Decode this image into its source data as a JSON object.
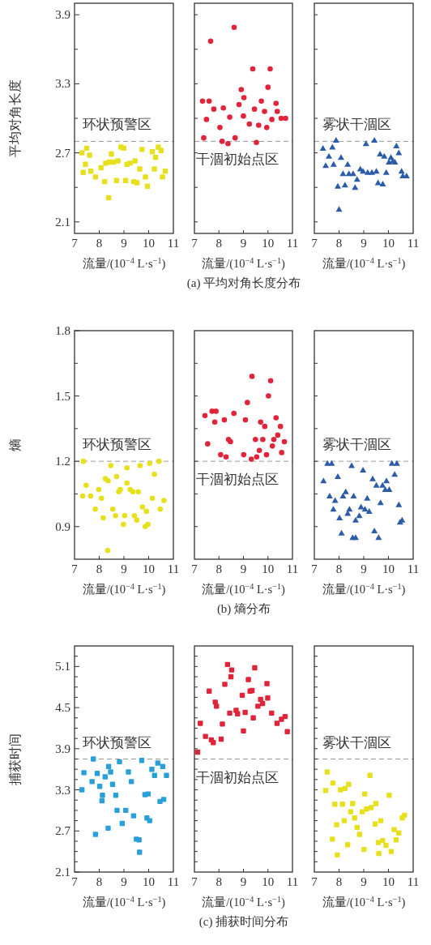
{
  "chart_data": [
    {
      "type": "scatter",
      "ylabel": "平均对角长度",
      "xlabel": "流量/(10$^{−4}$ L·s$^{−1}$)",
      "xlim": [
        7,
        11
      ],
      "xticks": [
        7,
        8,
        9,
        10,
        11
      ],
      "ylim": [
        2.0,
        4.0
      ],
      "yticks": [
        2.1,
        {
          "value": 2.4,
          "label": null
        },
        2.7,
        {
          "value": 3.0,
          "label": null
        },
        3.3,
        {
          "value": 3.6,
          "label": null
        },
        3.9
      ],
      "marker": "square",
      "ref_lines": [
        {
          "axis": "y",
          "value": 2.8,
          "color": "#999999",
          "line_style": "dashed",
          "label": "环状预警区"
        }
      ],
      "series": [
        {
          "color": "#e6e01e",
          "x": [
            7.3,
            7.49,
            7.61,
            7.44,
            7.35,
            7.66,
            7.85,
            8.07,
            8.22,
            8.26,
            8.38,
            8.49,
            8.4,
            8.57,
            8.7,
            8.76,
            8.88,
            8.99,
            9.07,
            9.12,
            9.25,
            9.45,
            9.4,
            9.53,
            9.64,
            9.73,
            9.87,
            9.95,
            10.15,
            10.23,
            10.28,
            10.39,
            10.5,
            10.56,
            10.67
          ],
          "values": [
            2.7,
            2.74,
            2.68,
            2.6,
            2.53,
            2.54,
            2.49,
            2.57,
            2.45,
            2.61,
            2.31,
            2.69,
            2.62,
            2.62,
            2.46,
            2.63,
            2.75,
            2.74,
            2.46,
            2.6,
            2.61,
            2.63,
            2.45,
            2.44,
            2.56,
            2.73,
            2.49,
            2.41,
            2.71,
            2.56,
            2.66,
            2.75,
            2.72,
            2.49,
            2.54
          ]
        }
      ]
    },
    {
      "type": "scatter",
      "xlabel": "流量/(10$^{−4}$ L·s$^{−1}$)",
      "xlim": [
        7,
        11
      ],
      "xticks": [
        7,
        8,
        9,
        10,
        11
      ],
      "ylim": [
        2.0,
        4.0
      ],
      "yticks": [
        {
          "value": 2.1,
          "label": null
        },
        {
          "value": 2.4,
          "label": null
        },
        {
          "value": 2.7,
          "label": null
        },
        {
          "value": 3.0,
          "label": null
        },
        {
          "value": 3.3,
          "label": null
        },
        {
          "value": 3.6,
          "label": null
        },
        {
          "value": 3.9,
          "label": null
        }
      ],
      "tick_labels": "x",
      "marker": "circle",
      "ref_lines": [
        {
          "axis": "y",
          "value": 2.8,
          "color": "#999999",
          "line_style": "dashed",
          "label": "干涸初始点区"
        }
      ],
      "annotations": [
        "(a) 平均对角长度分布"
      ],
      "series": [
        {
          "color": "#e0243a",
          "x": [
            7.33,
            7.6,
            7.49,
            7.79,
            7.38,
            7.66,
            8.04,
            8.18,
            8.13,
            8.37,
            8.44,
            8.62,
            8.66,
            8.82,
            8.91,
            9.02,
            9.0,
            9.24,
            9.38,
            9.45,
            9.53,
            9.62,
            9.73,
            9.86,
            9.95,
            10.0,
            10.09,
            10.16,
            10.33,
            10.38,
            10.54,
            10.72
          ],
          "values": [
            3.15,
            3.15,
            2.99,
            3.08,
            2.83,
            3.67,
            2.92,
            3.09,
            2.8,
            2.78,
            3.01,
            3.79,
            2.83,
            3.12,
            3.25,
            3.18,
            3.02,
            2.95,
            3.43,
            3.08,
            2.79,
            2.94,
            3.15,
            3.06,
            2.92,
            3.27,
            3.43,
            2.99,
            3.13,
            3.06,
            3.0,
            3.0
          ]
        }
      ]
    },
    {
      "type": "scatter",
      "xlabel": "流量/(10$^{−4}$ L·s$^{−1}$)",
      "xlim": [
        7,
        11
      ],
      "xticks": [
        7,
        8,
        9,
        10,
        11
      ],
      "ylim": [
        2.0,
        4.0
      ],
      "yticks": [
        {
          "value": 2.1,
          "label": null
        },
        {
          "value": 2.4,
          "label": null
        },
        {
          "value": 2.7,
          "label": null
        },
        {
          "value": 3.0,
          "label": null
        },
        {
          "value": 3.3,
          "label": null
        },
        {
          "value": 3.6,
          "label": null
        },
        {
          "value": 3.9,
          "label": null
        }
      ],
      "tick_labels": "x",
      "marker": "triangle",
      "ref_lines": [
        {
          "axis": "y",
          "value": 2.8,
          "color": "#999999",
          "line_style": "dashed",
          "label": "雾状干涸区"
        }
      ],
      "series": [
        {
          "color": "#2c5ca8",
          "x": [
            7.35,
            7.59,
            7.73,
            7.88,
            7.46,
            7.78,
            8.08,
            7.95,
            8.0,
            8.24,
            8.16,
            8.35,
            8.4,
            8.57,
            8.65,
            8.73,
            8.86,
            8.97,
            9.09,
            9.16,
            9.33,
            9.43,
            9.51,
            9.58,
            9.66,
            9.77,
            9.83,
            9.91,
            10.02,
            10.1,
            10.18,
            10.26,
            10.32,
            10.42,
            10.53,
            10.58,
            10.73
          ],
          "values": [
            2.74,
            2.67,
            2.75,
            2.81,
            2.59,
            2.6,
            2.66,
            2.41,
            2.21,
            2.42,
            2.52,
            2.6,
            2.52,
            2.52,
            2.4,
            2.47,
            2.56,
            2.54,
            2.78,
            2.53,
            2.53,
            2.81,
            2.54,
            2.44,
            2.69,
            2.43,
            2.67,
            2.53,
            2.62,
            2.66,
            2.63,
            2.62,
            2.76,
            2.7,
            2.54,
            2.5,
            2.5
          ]
        }
      ]
    },
    {
      "type": "scatter",
      "ylabel": "熵",
      "xlabel": "流量/(10$^{−4}$ L·s$^{−1}$)",
      "xlim": [
        7,
        11
      ],
      "xticks": [
        7,
        8,
        9,
        10,
        11
      ],
      "ylim": [
        0.75,
        1.8
      ],
      "yticks": [
        0.9,
        {
          "value": 1.05,
          "label": null
        },
        1.2,
        {
          "value": 1.35,
          "label": null
        },
        1.5,
        {
          "value": 1.65,
          "label": null
        },
        1.8
      ],
      "marker": "circle",
      "ref_lines": [
        {
          "axis": "y",
          "value": 1.2,
          "color": "#999999",
          "line_style": "dashed",
          "label": "环状预警区"
        }
      ],
      "series": [
        {
          "color": "#e6e01e",
          "x": [
            7.36,
            7.33,
            7.47,
            7.65,
            7.84,
            7.98,
            8.09,
            8.16,
            8.25,
            8.36,
            8.34,
            8.47,
            8.55,
            8.66,
            8.7,
            8.79,
            8.85,
            8.98,
            9.03,
            9.12,
            9.12,
            9.25,
            9.36,
            9.42,
            9.52,
            9.58,
            9.65,
            9.75,
            9.86,
            9.91,
            9.97,
            10.04,
            10.15,
            10.23,
            10.42,
            10.47,
            10.62
          ],
          "values": [
            1.2,
            1.04,
            1.09,
            1.04,
            0.98,
            1.07,
            1.03,
            0.94,
            1.12,
            1.11,
            0.79,
            1.18,
            0.98,
            0.95,
            1.13,
            1.06,
            1.07,
            0.91,
            0.95,
            1.1,
            1.17,
            1.07,
            1.06,
            0.95,
            0.93,
            1.06,
            1.18,
            0.99,
            0.9,
            0.97,
            0.91,
            1.19,
            1.03,
            1.14,
            1.2,
            0.98,
            1.02
          ]
        }
      ]
    },
    {
      "type": "scatter",
      "xlabel": "流量/(10$^{−4}$ L·s$^{−1}$)",
      "xlim": [
        7,
        11
      ],
      "xticks": [
        7,
        8,
        9,
        10,
        11
      ],
      "ylim": [
        0.75,
        1.8
      ],
      "yticks": [
        {
          "value": 0.9,
          "label": null
        },
        {
          "value": 1.05,
          "label": null
        },
        {
          "value": 1.2,
          "label": null
        },
        {
          "value": 1.35,
          "label": null
        },
        {
          "value": 1.5,
          "label": null
        },
        {
          "value": 1.65,
          "label": null
        }
      ],
      "tick_labels": "x",
      "marker": "circle",
      "ref_lines": [
        {
          "axis": "y",
          "value": 1.2,
          "color": "#999999",
          "line_style": "dashed",
          "label": "干涸初始点区"
        }
      ],
      "annotations": [
        "(b) 熵分布"
      ],
      "series": [
        {
          "color": "#e0243a",
          "x": [
            7.43,
            7.54,
            7.72,
            7.88,
            7.83,
            8.07,
            8.22,
            8.29,
            8.39,
            8.47,
            8.61,
            9.01,
            9.08,
            9.16,
            9.35,
            9.32,
            9.49,
            9.54,
            9.65,
            9.7,
            9.79,
            9.87,
            9.94,
            10.02,
            10.11,
            10.18,
            10.24,
            10.33,
            10.4,
            10.51,
            10.67,
            10.56
          ],
          "values": [
            1.41,
            1.28,
            1.43,
            1.43,
            1.38,
            1.23,
            1.39,
            1.22,
            1.3,
            1.29,
            1.42,
            1.23,
            1.39,
            1.47,
            1.59,
            1.21,
            1.3,
            1.22,
            1.25,
            1.38,
            1.3,
            1.36,
            1.23,
            1.5,
            1.57,
            1.27,
            1.3,
            1.4,
            1.32,
            1.36,
            1.29,
            1.24
          ]
        }
      ]
    },
    {
      "type": "scatter",
      "xlabel": "流量/(10$^{−4}$ L·s$^{−1}$)",
      "xlim": [
        7,
        11
      ],
      "xticks": [
        7,
        8,
        9,
        10,
        11
      ],
      "ylim": [
        0.75,
        1.8
      ],
      "yticks": [
        {
          "value": 0.9,
          "label": null
        },
        {
          "value": 1.05,
          "label": null
        },
        {
          "value": 1.2,
          "label": null
        },
        {
          "value": 1.35,
          "label": null
        },
        {
          "value": 1.5,
          "label": null
        },
        {
          "value": 1.65,
          "label": null
        }
      ],
      "tick_labels": "x",
      "marker": "triangle",
      "ref_lines": [
        {
          "axis": "y",
          "value": 1.2,
          "color": "#999999",
          "line_style": "dashed",
          "label": "雾状干涸区"
        }
      ],
      "series": [
        {
          "color": "#2c5ca8",
          "x": [
            7.53,
            7.7,
            7.37,
            7.95,
            7.62,
            7.84,
            7.77,
            8.02,
            8.1,
            8.16,
            8.27,
            8.35,
            8.42,
            8.51,
            8.59,
            8.55,
            8.67,
            8.67,
            8.82,
            8.89,
            8.97,
            9.05,
            9.14,
            9.22,
            9.36,
            9.43,
            9.51,
            9.6,
            9.68,
            9.76,
            9.87,
            9.92,
            10.03,
            10.14,
            10.34,
            10.25,
            10.42,
            10.47,
            10.55
          ],
          "values": [
            1.19,
            1.19,
            1.11,
            1.13,
            1.04,
            1.02,
            0.98,
            0.94,
            0.87,
            1.04,
            1.06,
            0.96,
            0.98,
            1.18,
            1.04,
            0.85,
            0.85,
            0.93,
            0.95,
            0.99,
            1.16,
            0.98,
            1.03,
            0.97,
            1.12,
            0.88,
            1.09,
            0.85,
            1.01,
            1.09,
            1.07,
            1.11,
            1.07,
            1.19,
            1.19,
            1.14,
            1.0,
            0.92,
            0.93
          ]
        }
      ]
    },
    {
      "type": "scatter",
      "ylabel": "捕获时间",
      "xlabel": "流量/(10$^{−4}$ L·s$^{−1}$)",
      "xlim": [
        7,
        11
      ],
      "xticks": [
        7,
        8,
        9,
        10,
        11
      ],
      "ylim": [
        2.1,
        5.4
      ],
      "yticks": [
        2.1,
        {
          "value": 2.25,
          "label": null
        },
        {
          "value": 2.4,
          "label": null
        },
        {
          "value": 2.55,
          "label": null
        },
        2.7,
        {
          "value": 2.85,
          "label": null
        },
        {
          "value": 3.0,
          "label": null
        },
        {
          "value": 3.15,
          "label": null
        },
        3.3,
        {
          "value": 3.45,
          "label": null
        },
        {
          "value": 3.6,
          "label": null
        },
        {
          "value": 3.75,
          "label": null
        },
        3.9,
        {
          "value": 4.05,
          "label": null
        },
        {
          "value": 4.2,
          "label": null
        },
        {
          "value": 4.35,
          "label": null
        },
        4.5,
        {
          "value": 4.65,
          "label": null
        },
        {
          "value": 4.8,
          "label": null
        },
        {
          "value": 4.95,
          "label": null
        },
        5.1,
        {
          "value": 5.25,
          "label": null
        }
      ],
      "marker": "square",
      "ref_lines": [
        {
          "axis": "y",
          "value": 3.75,
          "color": "#999999",
          "line_style": "dashed",
          "label": "环状预警区"
        }
      ],
      "series": [
        {
          "color": "#2a9fd8",
          "x": [
            7.3,
            7.38,
            7.71,
            7.76,
            7.85,
            7.92,
            8.02,
            8.13,
            8.11,
            8.24,
            8.36,
            8.38,
            8.46,
            8.54,
            8.67,
            8.72,
            8.82,
            8.93,
            9.07,
            9.18,
            9.3,
            9.39,
            9.5,
            9.61,
            9.63,
            9.72,
            9.85,
            9.98,
            9.93,
            10.04,
            10.13,
            10.24,
            10.37,
            10.46,
            10.57,
            10.61,
            10.72
          ],
          "values": [
            3.3,
            3.55,
            3.42,
            3.75,
            2.65,
            3.54,
            3.35,
            3.22,
            3.14,
            3.49,
            2.74,
            3.64,
            3.56,
            3.38,
            3.22,
            3.0,
            3.71,
            2.81,
            3.0,
            3.56,
            3.42,
            2.92,
            2.58,
            2.57,
            2.39,
            3.73,
            3.23,
            3.24,
            2.89,
            2.85,
            3.6,
            3.51,
            3.69,
            3.13,
            3.64,
            3.16,
            3.51
          ]
        }
      ]
    },
    {
      "type": "scatter",
      "xlabel": "流量/(10$^{−4}$ L·s$^{−1}$)",
      "xlim": [
        7,
        11
      ],
      "xticks": [
        7,
        8,
        9,
        10,
        11
      ],
      "ylim": [
        2.1,
        5.4
      ],
      "yticks": [
        {
          "value": 2.25,
          "label": null
        },
        {
          "value": 2.4,
          "label": null
        },
        {
          "value": 2.55,
          "label": null
        },
        {
          "value": 2.7,
          "label": null
        },
        {
          "value": 2.85,
          "label": null
        },
        {
          "value": 3.0,
          "label": null
        },
        {
          "value": 3.15,
          "label": null
        },
        {
          "value": 3.3,
          "label": null
        },
        {
          "value": 3.45,
          "label": null
        },
        {
          "value": 3.6,
          "label": null
        },
        {
          "value": 3.75,
          "label": null
        },
        {
          "value": 3.9,
          "label": null
        },
        {
          "value": 4.05,
          "label": null
        },
        {
          "value": 4.2,
          "label": null
        },
        {
          "value": 4.35,
          "label": null
        },
        {
          "value": 4.5,
          "label": null
        },
        {
          "value": 4.65,
          "label": null
        },
        {
          "value": 4.8,
          "label": null
        },
        {
          "value": 4.95,
          "label": null
        },
        {
          "value": 5.1,
          "label": null
        },
        {
          "value": 5.25,
          "label": null
        }
      ],
      "tick_labels": "x",
      "marker": "square",
      "ref_lines": [
        {
          "axis": "y",
          "value": 3.75,
          "color": "#999999",
          "line_style": "dashed",
          "label": "干涸初始点区"
        }
      ],
      "annotations": [
        "(c) 捕获时间分布"
      ],
      "series": [
        {
          "color": "#e0243a",
          "x": [
            7.13,
            7.24,
            7.45,
            7.6,
            7.69,
            7.77,
            7.85,
            7.9,
            8.09,
            8.14,
            8.24,
            8.35,
            8.44,
            8.52,
            8.49,
            8.7,
            8.76,
            8.95,
            9.0,
            9.07,
            9.2,
            9.27,
            9.35,
            9.4,
            9.46,
            9.59,
            9.7,
            9.78,
            9.96,
            9.99,
            10.15,
            10.37,
            10.55,
            10.7,
            10.79
          ],
          "values": [
            3.85,
            4.27,
            4.08,
            4.74,
            4.03,
            3.99,
            4.58,
            4.52,
            4.04,
            4.26,
            4.84,
            5.13,
            4.42,
            5.05,
            4.95,
            4.46,
            4.41,
            4.68,
            4.16,
            4.43,
            4.91,
            4.74,
            4.75,
            4.35,
            5.08,
            4.52,
            4.62,
            4.56,
            4.85,
            4.64,
            4.42,
            4.27,
            4.33,
            4.37,
            4.15
          ]
        }
      ]
    },
    {
      "type": "scatter",
      "xlabel": "流量/(10$^{−4}$ L·s$^{−1}$)",
      "xlim": [
        7,
        11
      ],
      "xticks": [
        7,
        8,
        9,
        10,
        11
      ],
      "ylim": [
        2.1,
        5.4
      ],
      "yticks": [
        {
          "value": 2.25,
          "label": null
        },
        {
          "value": 2.4,
          "label": null
        },
        {
          "value": 2.55,
          "label": null
        },
        {
          "value": 2.7,
          "label": null
        },
        {
          "value": 2.85,
          "label": null
        },
        {
          "value": 3.0,
          "label": null
        },
        {
          "value": 3.15,
          "label": null
        },
        {
          "value": 3.3,
          "label": null
        },
        {
          "value": 3.45,
          "label": null
        },
        {
          "value": 3.6,
          "label": null
        },
        {
          "value": 3.75,
          "label": null
        },
        {
          "value": 3.9,
          "label": null
        },
        {
          "value": 4.05,
          "label": null
        },
        {
          "value": 4.2,
          "label": null
        },
        {
          "value": 4.35,
          "label": null
        },
        {
          "value": 4.5,
          "label": null
        },
        {
          "value": 4.65,
          "label": null
        },
        {
          "value": 4.8,
          "label": null
        },
        {
          "value": 4.95,
          "label": null
        },
        {
          "value": 5.1,
          "label": null
        },
        {
          "value": 5.25,
          "label": null
        }
      ],
      "tick_labels": "x",
      "marker": "square",
      "ref_lines": [
        {
          "axis": "y",
          "value": 3.75,
          "color": "#999999",
          "line_style": "dashed",
          "label": "雾状干涸区"
        }
      ],
      "series": [
        {
          "color": "#e6e01e",
          "x": [
            7.52,
            7.46,
            7.75,
            8.06,
            8.24,
            8.39,
            7.83,
            8.14,
            8.47,
            8.55,
            8.21,
            7.9,
            7.73,
            7.93,
            8.35,
            8.63,
            8.73,
            8.83,
            8.94,
            9.01,
            9.04,
            9.11,
            9.25,
            9.3,
            9.46,
            9.49,
            9.59,
            9.69,
            9.76,
            9.61,
            9.9,
            10.03,
            10.11,
            10.23,
            10.31,
            10.42,
            10.56,
            10.65
          ],
          "values": [
            3.56,
            3.29,
            3.4,
            3.3,
            3.32,
            3.38,
            3.09,
            3.09,
            2.98,
            3.1,
            2.85,
            2.79,
            2.58,
            2.35,
            2.5,
            2.89,
            2.75,
            2.65,
            2.98,
            2.43,
            3.24,
            3.02,
            3.51,
            3.04,
            2.8,
            3.1,
            2.53,
            2.85,
            2.56,
            2.37,
            2.49,
            3.22,
            2.4,
            2.72,
            2.57,
            2.67,
            2.89,
            2.93
          ]
        }
      ]
    }
  ]
}
